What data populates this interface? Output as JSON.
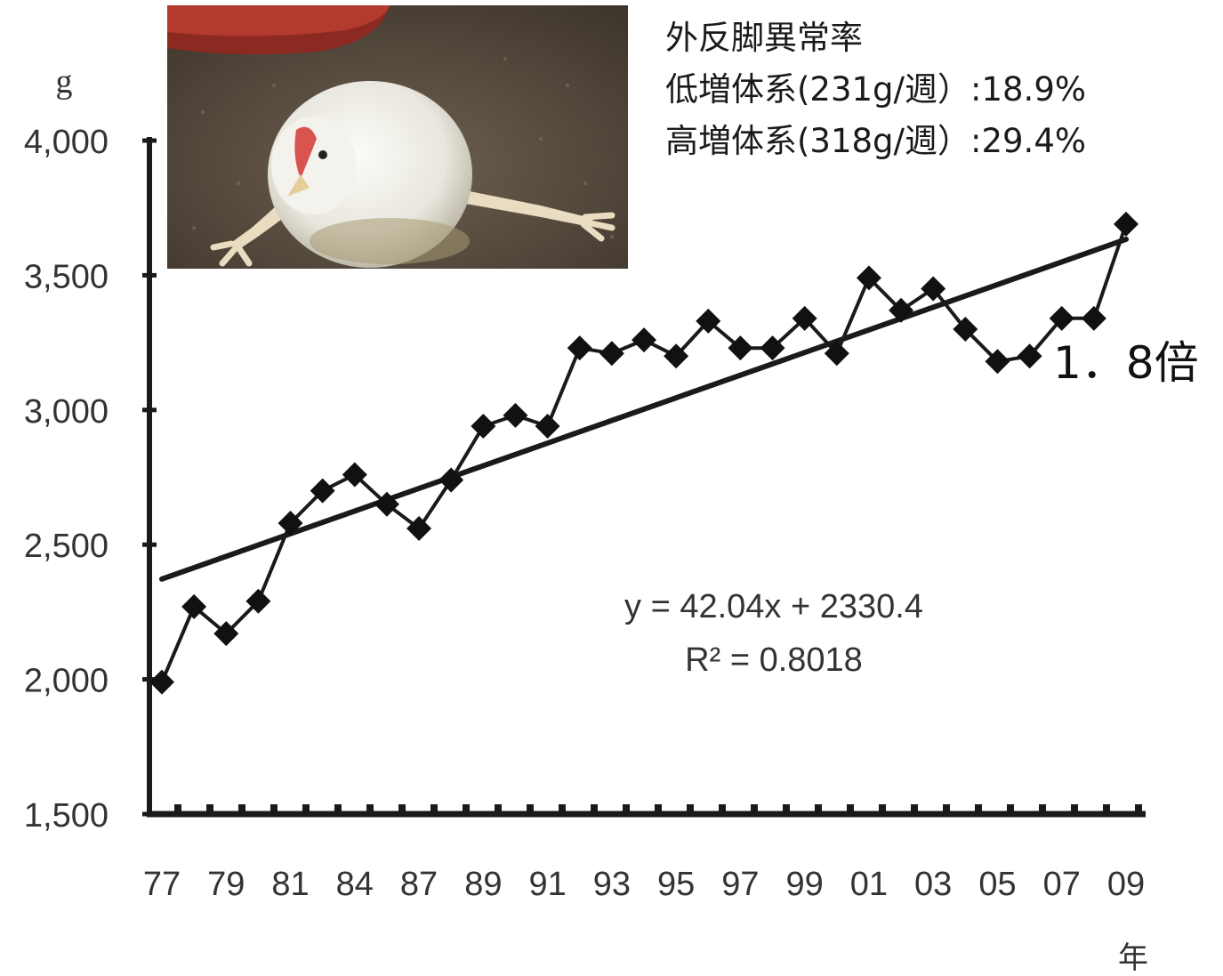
{
  "notes": {
    "title": "外反脚異常率",
    "line1": "低増体系(231g/週）:18.9%",
    "line2": "高増体系(318g/週）:29.4%"
  },
  "equation": {
    "line1": "y = 42.04x + 2330.4",
    "line2": "R² = 0.8018"
  },
  "multiplier_label": "1．8倍",
  "photo": {
    "subject": "broiler-chicken-with-splayed-legs"
  },
  "chart_data": {
    "type": "line",
    "title": "",
    "xlabel": "年",
    "ylabel": "g",
    "ylim": [
      1500,
      4000
    ],
    "yticks": [
      1500,
      2000,
      2500,
      3000,
      3500,
      4000
    ],
    "ytick_labels": [
      "1,500",
      "2,000",
      "2,500",
      "3,000",
      "3,500",
      "4,000"
    ],
    "x_tick_labels": [
      "77",
      "79",
      "81",
      "84",
      "87",
      "89",
      "91",
      "93",
      "95",
      "97",
      "99",
      "01",
      "03",
      "05",
      "07",
      "09"
    ],
    "series": [
      {
        "marker": "diamond",
        "values": [
          1990,
          2270,
          2170,
          2290,
          2580,
          2700,
          2760,
          2650,
          2560,
          2740,
          2940,
          2980,
          2940,
          3230,
          3210,
          3260,
          3200,
          3330,
          3230,
          3230,
          3340,
          3210,
          3490,
          3370,
          3450,
          3300,
          3180,
          3200,
          3340,
          3340,
          3690
        ]
      }
    ],
    "trendline": {
      "slope": 42.04,
      "intercept": 2330.4,
      "r2": 0.8018
    },
    "grid": false,
    "legend": "none",
    "colors": {
      "line": "#1a1a1a",
      "marker": "#111111",
      "trend": "#1a1a1a"
    }
  }
}
